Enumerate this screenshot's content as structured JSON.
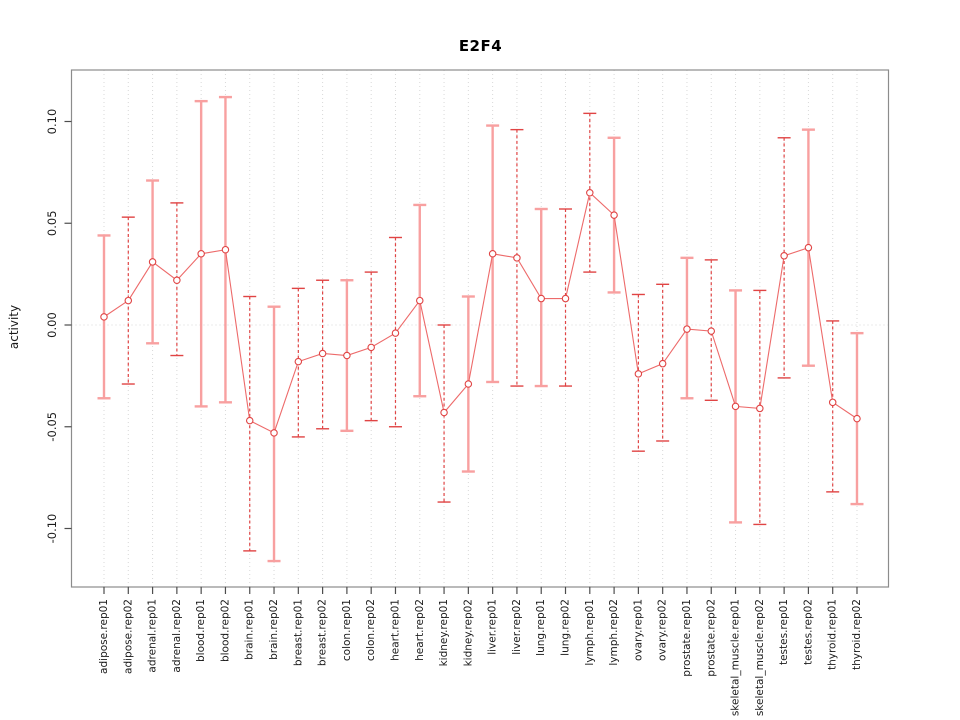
{
  "figure": {
    "title": "E2F4",
    "y_axis_label": "activity"
  },
  "chart_data": {
    "type": "line",
    "subtype": "points-with-error-bars",
    "title": "E2F4",
    "xlabel": "",
    "ylabel": "activity",
    "ylim": [
      -0.125,
      0.125
    ],
    "legend": "none",
    "grid": {
      "vertical_dotted_per_category": true,
      "horizontal_zero_line_dotted": true
    },
    "yticks": [
      {
        "v": 0.1,
        "label": "0.10"
      },
      {
        "v": 0.05,
        "label": "0.05"
      },
      {
        "v": 0.0,
        "label": "0.00"
      },
      {
        "v": -0.05,
        "label": "-0.05"
      },
      {
        "v": -0.1,
        "label": "-0.10"
      }
    ],
    "categories": [
      "adipose.rep01",
      "adipose.rep02",
      "adrenal.rep01",
      "adrenal.rep02",
      "blood.rep01",
      "blood.rep02",
      "brain.rep01",
      "brain.rep02",
      "breast.rep01",
      "breast.rep02",
      "colon.rep01",
      "colon.rep02",
      "heart.rep01",
      "heart.rep02",
      "kidney.rep01",
      "kidney.rep02",
      "liver.rep01",
      "liver.rep02",
      "lung.rep01",
      "lung.rep02",
      "lymph.rep01",
      "lymph.rep02",
      "ovary.rep01",
      "ovary.rep02",
      "prostate.rep01",
      "prostate.rep02",
      "skeletal_muscle.rep01",
      "skeletal_muscle.rep02",
      "testes.rep01",
      "testes.rep02",
      "thyroid.rep01",
      "thyroid.rep02"
    ],
    "values": [
      0.004,
      0.012,
      0.031,
      0.022,
      0.035,
      0.037,
      -0.047,
      -0.053,
      -0.018,
      -0.014,
      -0.015,
      -0.011,
      -0.004,
      0.012,
      -0.043,
      -0.029,
      0.035,
      0.033,
      0.013,
      0.013,
      0.065,
      0.054,
      -0.024,
      -0.019,
      -0.002,
      -0.003,
      -0.04,
      -0.041,
      0.034,
      0.038,
      -0.038,
      -0.046
    ],
    "upper": [
      0.044,
      0.053,
      0.071,
      0.06,
      0.11,
      0.112,
      0.014,
      0.009,
      0.018,
      0.022,
      0.022,
      0.026,
      0.043,
      0.059,
      0.0,
      0.014,
      0.098,
      0.096,
      0.057,
      0.057,
      0.104,
      0.092,
      0.015,
      0.02,
      0.033,
      0.032,
      0.017,
      0.017,
      0.092,
      0.096,
      0.002,
      -0.004
    ],
    "lower": [
      -0.036,
      -0.029,
      -0.009,
      -0.015,
      -0.04,
      -0.038,
      -0.111,
      -0.116,
      -0.055,
      -0.051,
      -0.052,
      -0.047,
      -0.05,
      -0.035,
      -0.087,
      -0.072,
      -0.028,
      -0.03,
      -0.03,
      -0.03,
      0.026,
      0.016,
      -0.062,
      -0.057,
      -0.036,
      -0.037,
      -0.097,
      -0.098,
      -0.026,
      -0.02,
      -0.082,
      -0.088
    ],
    "bar_styles": [
      "solid",
      "dashed",
      "solid",
      "dashed",
      "solid",
      "solid",
      "dashed",
      "solid",
      "dashed",
      "dashed",
      "solid",
      "dashed",
      "dashed",
      "solid",
      "dashed",
      "solid",
      "solid",
      "dashed",
      "solid",
      "dashed",
      "dashed",
      "solid",
      "dashed",
      "dashed",
      "solid",
      "dashed",
      "solid",
      "dashed",
      "dashed",
      "solid",
      "dashed",
      "solid"
    ],
    "colors": {
      "error_bar_dashed": "#e04444",
      "error_bar_solid": "#f8a0a0",
      "series_line": "#ed6a6a",
      "marker_stroke": "#e04444",
      "marker_fill": "#ffffff",
      "grid": "#d8d8d8",
      "box": "#8c8c8c",
      "tick": "#4d4d4d",
      "text": "#1a1a1a"
    }
  }
}
